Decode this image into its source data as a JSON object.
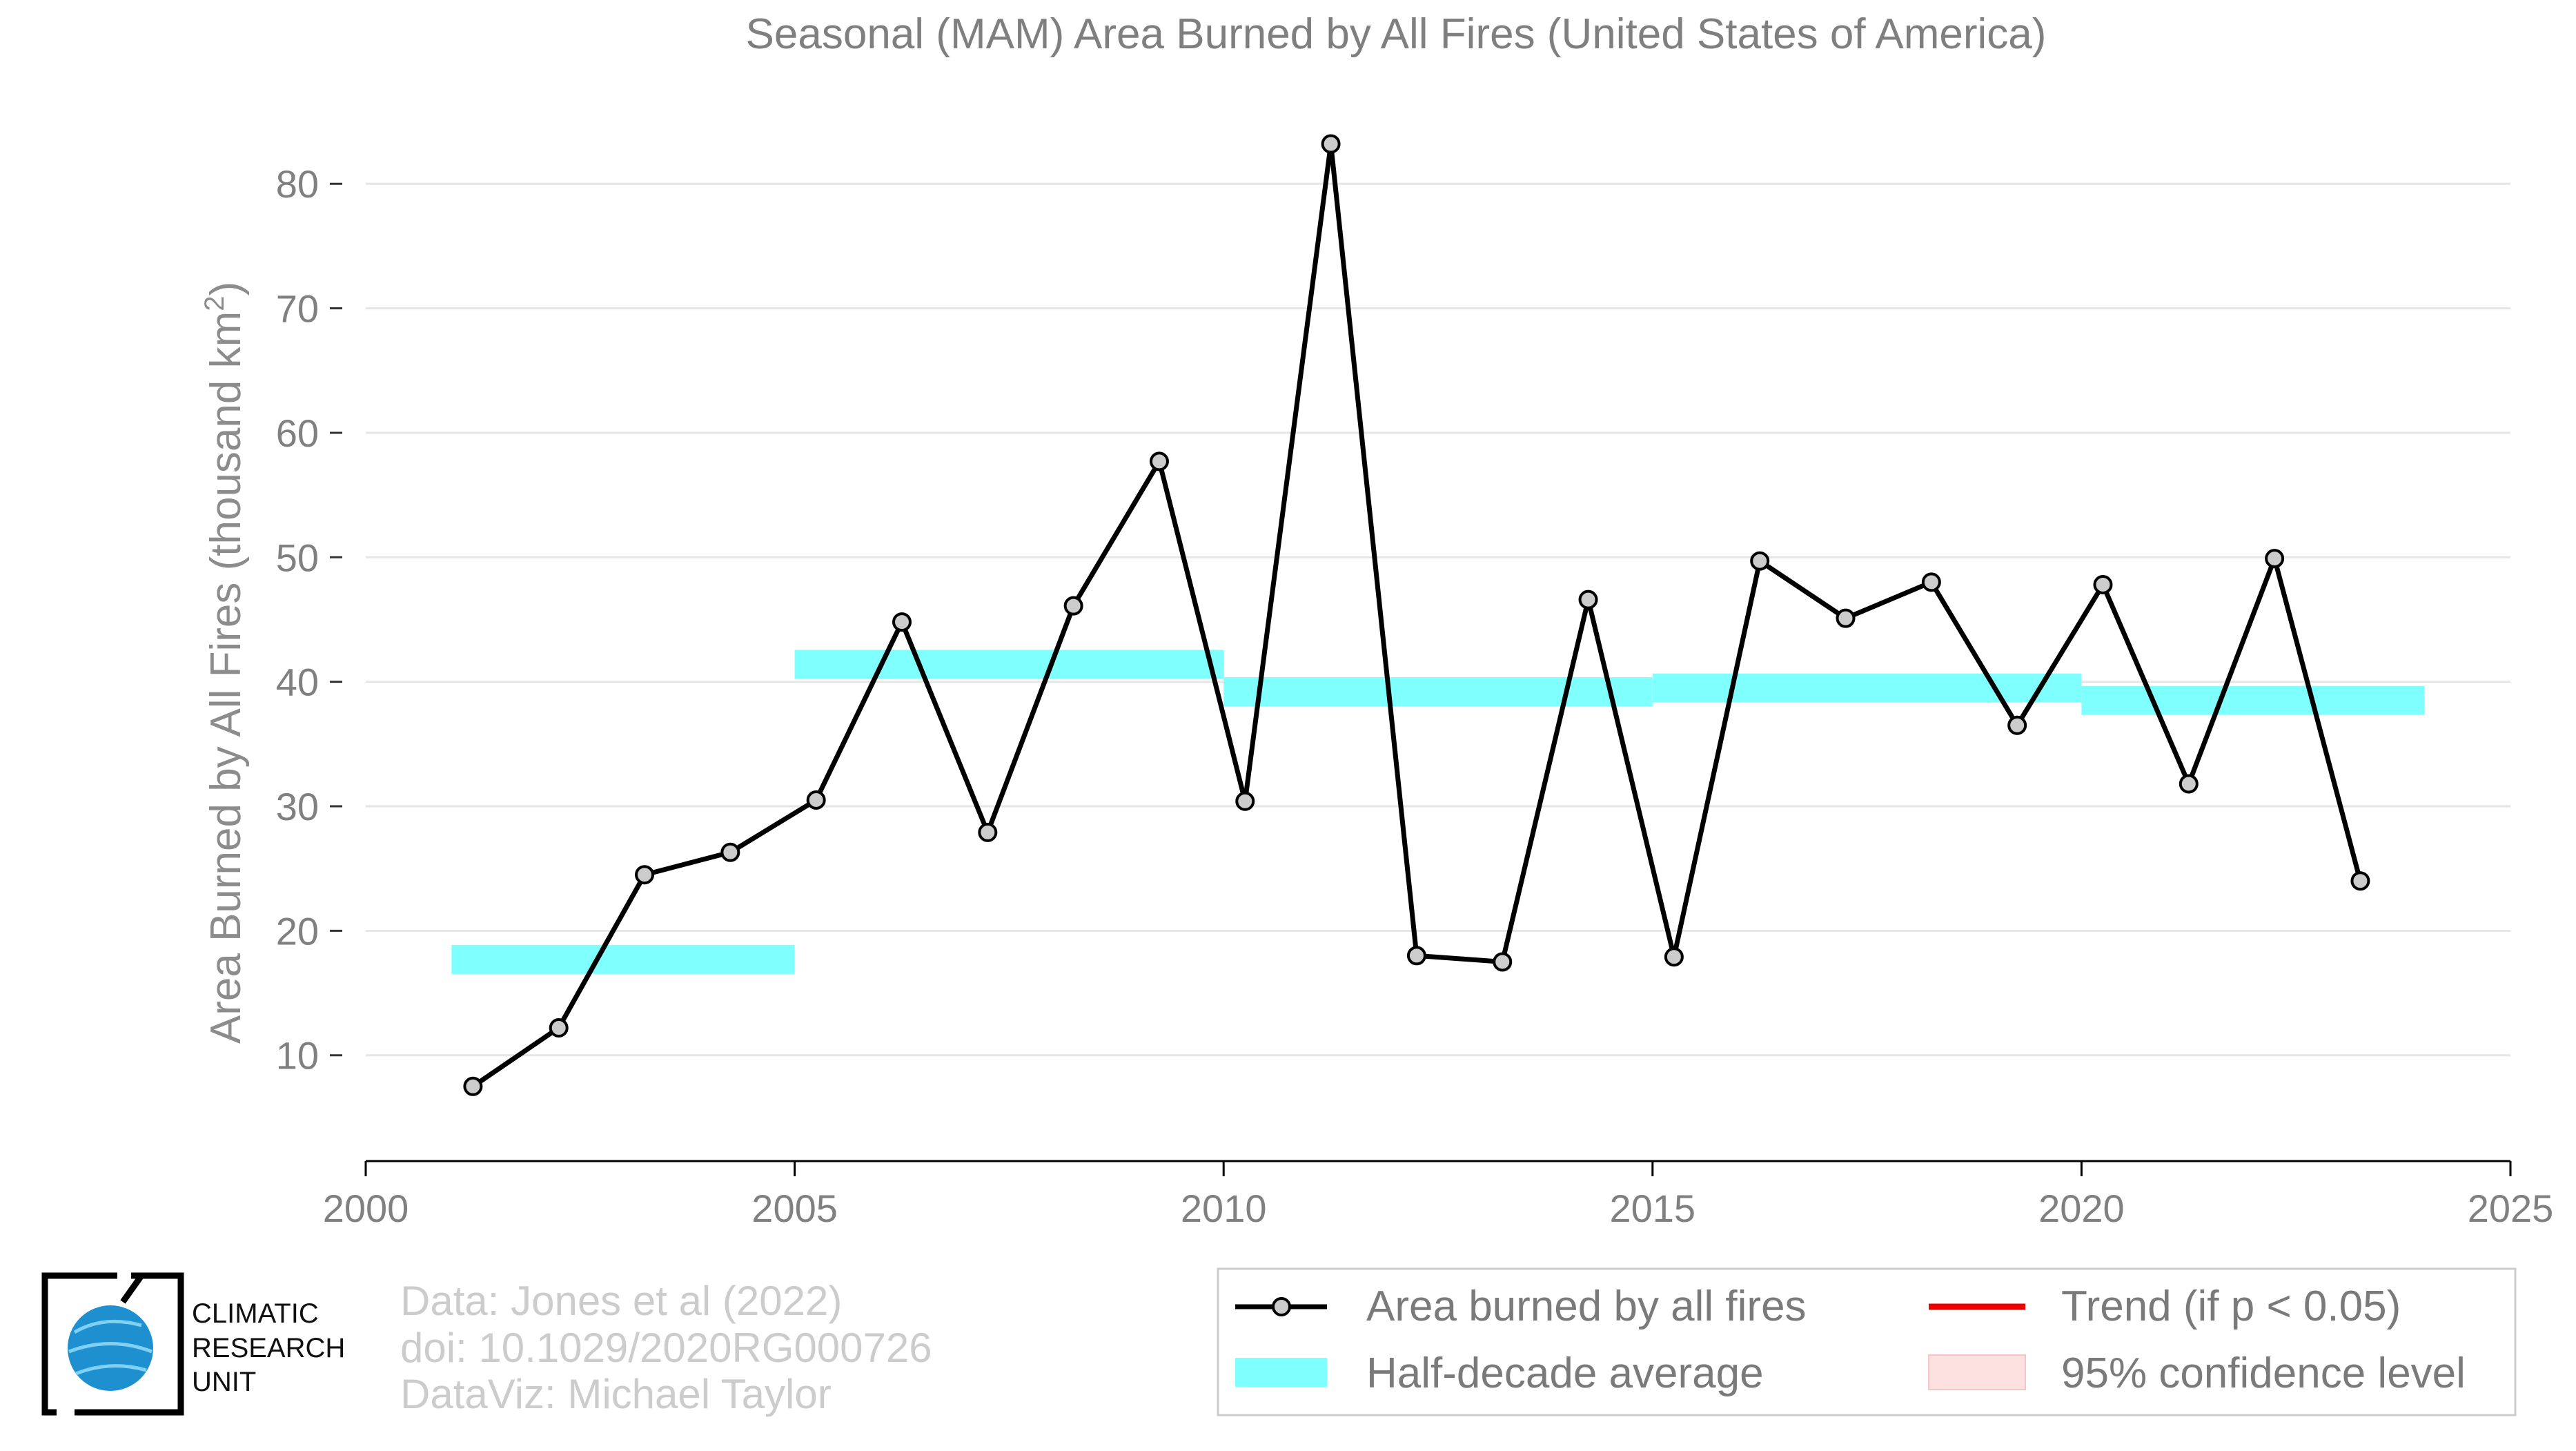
{
  "chart_data": {
    "type": "line",
    "title": "Seasonal (MAM) Area Burned by All Fires (United States of America)",
    "xlabel": "",
    "ylabel": "Area Burned by All Fires (thousand km",
    "ylabel_superscript": "2",
    "ylabel_close": ")",
    "xlim": [
      2000,
      2025
    ],
    "ylim": [
      1.5,
      87
    ],
    "x_ticks": [
      2000,
      2005,
      2010,
      2015,
      2020,
      2025
    ],
    "y_ticks": [
      10,
      20,
      30,
      40,
      50,
      60,
      70,
      80
    ],
    "grid": "horizontal",
    "legend_position": "bottom-right",
    "series": [
      {
        "name": "Area burned by all fires",
        "kind": "line-markers",
        "color": "#000000",
        "marker_fill": "#cccccc",
        "x": [
          2001.25,
          2002.25,
          2003.25,
          2004.25,
          2005.25,
          2006.25,
          2007.25,
          2008.25,
          2009.25,
          2010.25,
          2011.25,
          2012.25,
          2013.25,
          2014.25,
          2015.25,
          2016.25,
          2017.25,
          2018.25,
          2019.25,
          2020.25,
          2021.25,
          2022.25,
          2023.25
        ],
        "y": [
          7.5,
          12.2,
          24.5,
          26.3,
          30.5,
          44.8,
          27.9,
          46.1,
          57.7,
          30.4,
          83.2,
          18.0,
          17.5,
          46.6,
          17.9,
          49.7,
          45.1,
          48.0,
          36.5,
          47.8,
          31.8,
          49.9,
          24.0
        ]
      },
      {
        "name": "Half-decade average",
        "kind": "band-segments",
        "color": "#80ffff",
        "segments": [
          {
            "x0": 2001,
            "x1": 2005,
            "y": 17.7
          },
          {
            "x0": 2005,
            "x1": 2010,
            "y": 41.4
          },
          {
            "x0": 2010,
            "x1": 2015,
            "y": 39.2
          },
          {
            "x0": 2015,
            "x1": 2020,
            "y": 39.5
          },
          {
            "x0": 2020,
            "x1": 2024,
            "y": 38.5
          }
        ]
      },
      {
        "name": "Trend (if p < 0.05)",
        "kind": "line",
        "color": "#ee0000",
        "shown": false
      },
      {
        "name": "95% confidence level",
        "kind": "area",
        "color": "#fde0e0",
        "shown": false
      }
    ]
  },
  "credits": {
    "line1": "Data: Jones et al (2022)",
    "line2": "doi: 10.1029/2020RG000726",
    "line3": "DataViz: Michael Taylor"
  },
  "logo": {
    "line1": "CLIMATIC",
    "line2": "RESEARCH",
    "line3": "UNIT",
    "globe_color": "#1e90d0"
  }
}
